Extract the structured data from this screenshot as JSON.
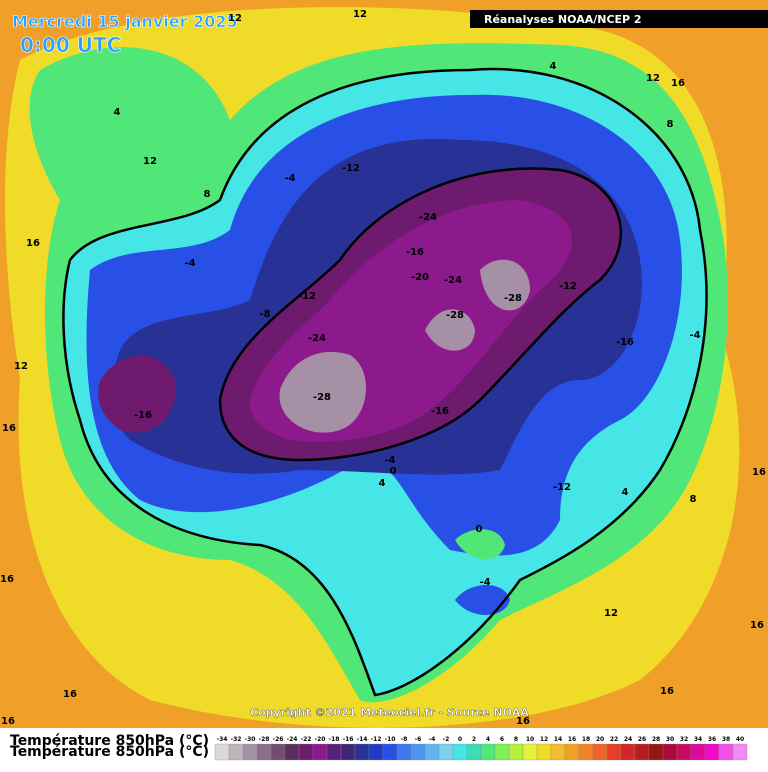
{
  "header": {
    "title": "Mercredi 15 janvier 2025",
    "time": "0:00 UTC",
    "source_box": "Réanalyses NOAA/NCEP 2"
  },
  "map": {
    "copyright": "Copyright ©2021 Meteociel.fr - Source NOAA",
    "contour_labels": [
      12,
      12,
      4,
      12,
      8,
      4,
      12,
      16,
      8,
      -4,
      -12,
      -24,
      -16,
      -24,
      -20,
      -28,
      -12,
      -12,
      -8,
      -4,
      16,
      -24,
      -28,
      -28,
      -16,
      -16,
      -4,
      12,
      -16,
      16,
      -4,
      0,
      4,
      -12,
      4,
      8,
      16,
      0,
      -4,
      12,
      16,
      16,
      16,
      16,
      16,
      16
    ]
  },
  "legend": {
    "title": "Température 850hPa (°C)",
    "values": [
      -34,
      -32,
      -30,
      -28,
      -26,
      -24,
      -22,
      -20,
      -18,
      -16,
      -14,
      -12,
      -10,
      -8,
      -6,
      -4,
      -2,
      0,
      2,
      4,
      6,
      8,
      10,
      12,
      14,
      16,
      18,
      20,
      22,
      24,
      26,
      28,
      30,
      32,
      34,
      36,
      38,
      40
    ],
    "colors": [
      "#d9d9d9",
      "#bfb3bf",
      "#a690a6",
      "#8c6e8c",
      "#734d73",
      "#5c2d5c",
      "#6e1a6e",
      "#8c1a8c",
      "#5a1e78",
      "#3c2878",
      "#283296",
      "#1e3cc8",
      "#2850e6",
      "#3c78f0",
      "#5096f0",
      "#64b4f0",
      "#78d2f0",
      "#46e6e6",
      "#3cdcb4",
      "#50e678",
      "#82f05a",
      "#b4f03c",
      "#e6f03c",
      "#f0dc28",
      "#f0be28",
      "#f0a028",
      "#f08228",
      "#f06428",
      "#e63c28",
      "#d22828",
      "#b41e1e",
      "#961414",
      "#aa0a3c",
      "#c80a64",
      "#dc0a96",
      "#f00ac8",
      "#f050e6",
      "#f08cf0"
    ]
  }
}
